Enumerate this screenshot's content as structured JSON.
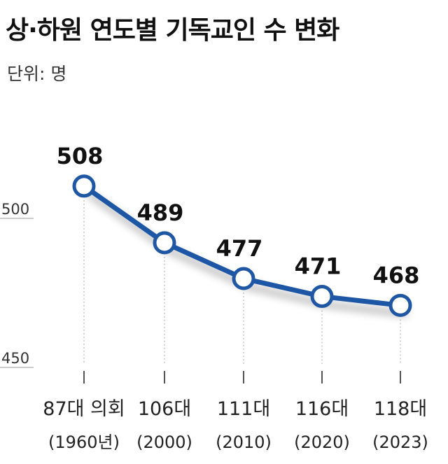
{
  "title": "상·하원 연도별 기독교인 수 변화",
  "unit": "단위: 명",
  "chart_data": {
    "type": "line",
    "categories": [
      "87대 의회",
      "106대",
      "111대",
      "116대",
      "118대"
    ],
    "years": [
      "(1960년)",
      "(2000)",
      "(2010)",
      "(2020)",
      "(2023)"
    ],
    "values": [
      508,
      489,
      477,
      471,
      468
    ],
    "yticks": [
      450,
      500
    ],
    "ylim": [
      440,
      520
    ],
    "grid": false,
    "line_color": "#1f57a4"
  }
}
